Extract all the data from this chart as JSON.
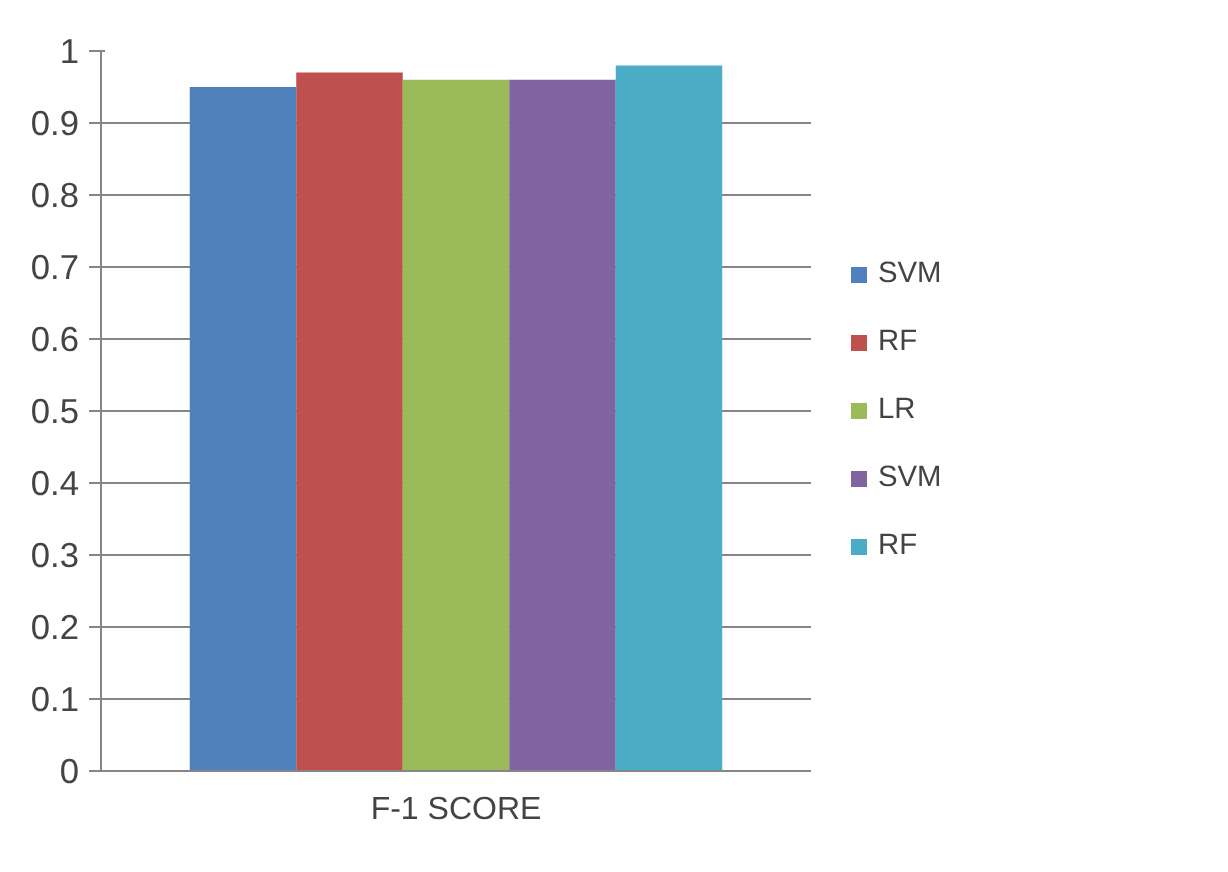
{
  "chart_data": {
    "type": "bar",
    "categories": [
      "F-1 SCORE"
    ],
    "series": [
      {
        "name": "SVM",
        "color": "#4f81bd",
        "values": [
          0.95
        ]
      },
      {
        "name": "RF",
        "color": "#c0504d",
        "values": [
          0.97
        ]
      },
      {
        "name": "LR",
        "color": "#9bbb59",
        "values": [
          0.96
        ]
      },
      {
        "name": "SVM",
        "color": "#8064a2",
        "values": [
          0.96
        ]
      },
      {
        "name": "RF",
        "color": "#4bacc6",
        "values": [
          0.98
        ]
      }
    ],
    "ylim": [
      0,
      1
    ],
    "yticks": [
      0,
      0.1,
      0.2,
      0.3,
      0.4,
      0.5,
      0.6,
      0.7,
      0.8,
      0.9,
      1
    ],
    "grid": "y",
    "legend": "right"
  }
}
